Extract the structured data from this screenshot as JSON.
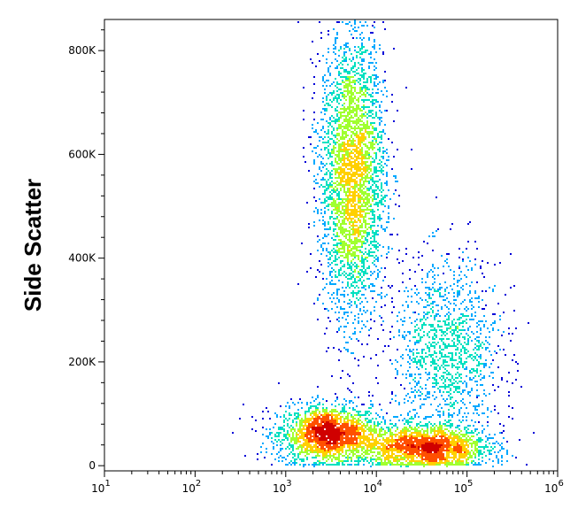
{
  "chart_data": {
    "type": "scatter",
    "render": "density-dot-plot",
    "title": "",
    "xlabel": "",
    "ylabel": "Side Scatter",
    "x_scale": "log",
    "xlim": [
      10,
      1000000
    ],
    "ylim": [
      -10000,
      860000
    ],
    "x_ticks": [
      {
        "base": "10",
        "exp": "1",
        "value": 10
      },
      {
        "base": "10",
        "exp": "2",
        "value": 100
      },
      {
        "base": "10",
        "exp": "3",
        "value": 1000
      },
      {
        "base": "10",
        "exp": "4",
        "value": 10000
      },
      {
        "base": "10",
        "exp": "5",
        "value": 100000
      },
      {
        "base": "10",
        "exp": "6",
        "value": 1000000
      }
    ],
    "y_ticks": [
      {
        "label": "0",
        "value": 0
      },
      {
        "label": "200K",
        "value": 200000
      },
      {
        "label": "400K",
        "value": 400000
      },
      {
        "label": "600K",
        "value": 600000
      },
      {
        "label": "800K",
        "value": 800000
      }
    ],
    "color_scale": [
      "#0000d8",
      "#00a8ff",
      "#00e0c0",
      "#a0ff30",
      "#ffd000",
      "#ff5000",
      "#d00000"
    ],
    "populations": [
      {
        "name": "",
        "x_center": 3000,
        "y_center": 60000,
        "x_spread_decades": 0.28,
        "y_spread": 28000,
        "points": 2200
      },
      {
        "name": "",
        "x_center": 35000,
        "y_center": 35000,
        "x_spread_decades": 0.35,
        "y_spread": 22000,
        "points": 2000
      },
      {
        "name": "",
        "x_center": 5500,
        "y_center": 560000,
        "x_spread_decades": 0.18,
        "y_spread": 140000,
        "points": 3500
      },
      {
        "name": "",
        "x_center": 60000,
        "y_center": 220000,
        "x_spread_decades": 0.3,
        "y_spread": 90000,
        "points": 1400
      }
    ],
    "grid": false,
    "legend": "none"
  }
}
